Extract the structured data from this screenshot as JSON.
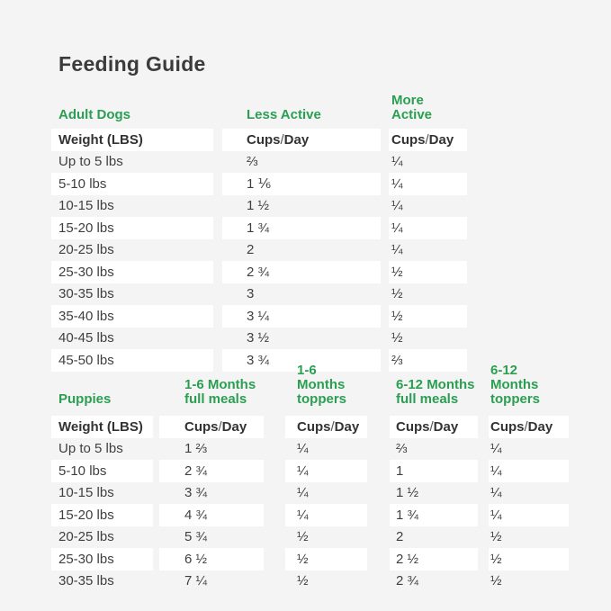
{
  "page": {
    "title": "Feeding Guide",
    "background": "#f4f4f4",
    "accent_green": "#2b9e52",
    "text_color": "#3b3b3b"
  },
  "tables": [
    {
      "id": "adult-dogs",
      "section_headers": [
        [
          "Adult Dogs"
        ],
        [
          "Less Active"
        ],
        [
          "More Active"
        ]
      ],
      "column_headers": [
        "Weight (LBS)",
        "Cups / Day",
        "Cups / Day"
      ],
      "rows": [
        [
          "Up to 5 lbs",
          "⅔",
          "¼"
        ],
        [
          "5-10 lbs",
          "1 ⅙",
          "¼"
        ],
        [
          "10-15 lbs",
          "1 ½",
          "¼"
        ],
        [
          "15-20 lbs",
          "1 ¾",
          "¼"
        ],
        [
          "20-25 lbs",
          "2",
          "¼"
        ],
        [
          "25-30 lbs",
          "2 ¾",
          "½"
        ],
        [
          "30-35 lbs",
          "3",
          "½"
        ],
        [
          "35-40 lbs",
          "3 ¼",
          "½"
        ],
        [
          "40-45 lbs",
          "3 ½",
          "½"
        ],
        [
          "45-50 lbs",
          "3 ¾",
          "⅔"
        ]
      ]
    },
    {
      "id": "puppies",
      "section_headers": [
        [
          "Puppies"
        ],
        [
          "1-6 Months",
          "full meals"
        ],
        [
          "1-6 Months",
          "toppers"
        ],
        [
          "6-12 Months",
          "full meals"
        ],
        [
          "6-12 Months",
          "toppers"
        ]
      ],
      "column_headers": [
        "Weight (LBS)",
        "Cups / Day",
        "Cups / Day",
        "Cups / Day",
        "Cups / Day"
      ],
      "rows": [
        [
          "Up to 5 lbs",
          "1 ⅔",
          "¼",
          "⅔",
          "¼"
        ],
        [
          "5-10 lbs",
          "2 ¾",
          "¼",
          "1",
          "¼"
        ],
        [
          "10-15 lbs",
          "3 ¾",
          "¼",
          "1 ½",
          "¼"
        ],
        [
          "15-20 lbs",
          "4 ¾",
          "¼",
          "1 ¾",
          "¼"
        ],
        [
          "20-25 lbs",
          "5 ¾",
          "½",
          "2",
          "½"
        ],
        [
          "25-30 lbs",
          "6 ½",
          "½",
          "2 ½",
          "½"
        ],
        [
          "30-35 lbs",
          "7 ¼",
          "½",
          "2 ¾",
          "½"
        ]
      ]
    }
  ]
}
